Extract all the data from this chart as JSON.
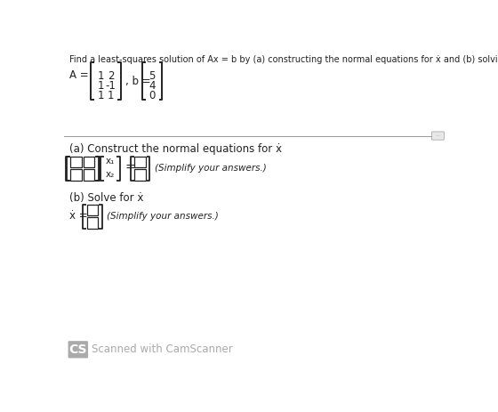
{
  "bg_color": "#ffffff",
  "title_text": "Find a least-squares solution of Ax = b by (a) constructing the normal equations for ẋ and (b) solving for ẋ",
  "A_matrix": [
    [
      "1",
      "2"
    ],
    [
      "1",
      "-1"
    ],
    [
      "1",
      "1"
    ]
  ],
  "b_matrix": [
    "5",
    "4",
    "0"
  ],
  "part_a_header": "(a) Construct the normal equations for ẋ",
  "part_b_header": "(b) Solve for ẋ",
  "part_a_note": "(Simplify your answers.)",
  "part_b_note": "(Simplify your answers.)",
  "cs_label": "CS",
  "cs_text": "Scanned with CamScanner",
  "font_color": "#222222",
  "cs_color": "#aaaaaa",
  "title_fontsize": 7.0,
  "body_fontsize": 8.5,
  "matrix_fontsize": 8.5,
  "note_fontsize": 7.5
}
